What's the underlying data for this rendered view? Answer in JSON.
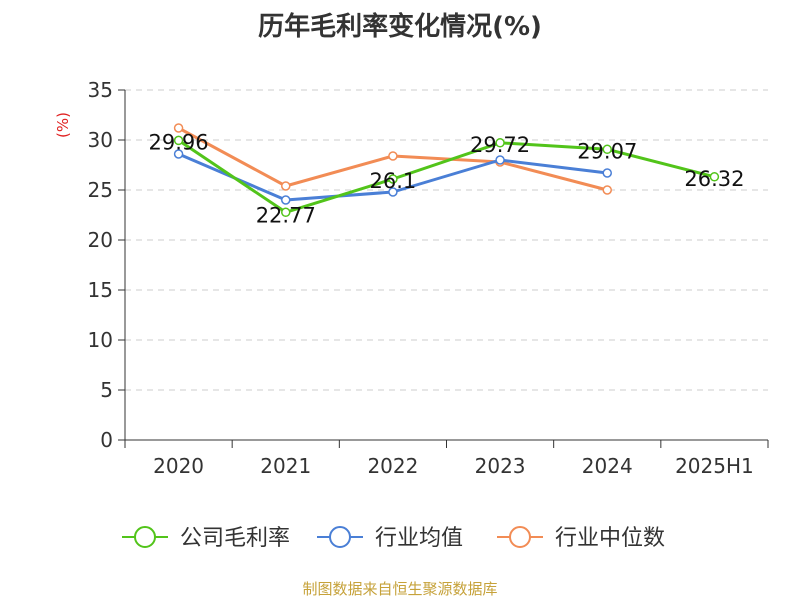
{
  "chart_data": {
    "type": "line",
    "title": "历年毛利率变化情况(%)",
    "ylabel": "(%)",
    "categories": [
      "2020",
      "2021",
      "2022",
      "2023",
      "2024",
      "2025H1"
    ],
    "ylim": [
      0,
      35
    ],
    "yticks": [
      0,
      5,
      10,
      15,
      20,
      25,
      30,
      35
    ],
    "grid": true,
    "legend": "bottom",
    "series": [
      {
        "name": "公司毛利率",
        "color": "#52c41a",
        "values": [
          29.96,
          22.77,
          26.1,
          29.72,
          29.07,
          26.32
        ],
        "labels": [
          "29.96",
          "22.77",
          "26.1",
          "29.72",
          "29.07",
          "26.32"
        ]
      },
      {
        "name": "行业均值",
        "color": "#4a7fd6",
        "values": [
          28.6,
          24.0,
          24.8,
          28.0,
          26.7,
          null
        ]
      },
      {
        "name": "行业中位数",
        "color": "#f28c55",
        "values": [
          31.2,
          25.4,
          28.4,
          27.8,
          25.0,
          null
        ]
      }
    ]
  },
  "source": "制图数据来自恒生聚源数据库"
}
